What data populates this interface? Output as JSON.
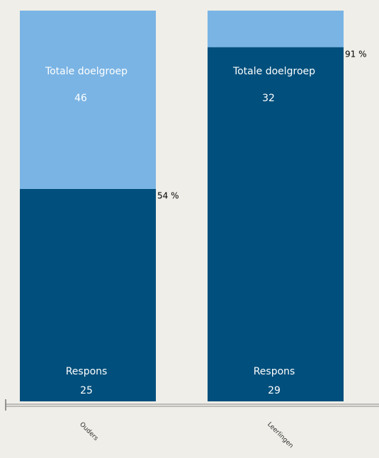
{
  "chart_data": {
    "type": "bar",
    "categories": [
      "Ouders",
      "Leerlingen"
    ],
    "series": [
      {
        "name": "Totale doelgroep",
        "color": "#7ab4e4",
        "values": [
          46,
          32
        ]
      },
      {
        "name": "Respons",
        "color": "#004f7c",
        "values": [
          25,
          29
        ]
      }
    ],
    "percentages": {
      "values": [
        54,
        91
      ],
      "value_labels": [
        "54 %",
        "91 %"
      ]
    }
  }
}
